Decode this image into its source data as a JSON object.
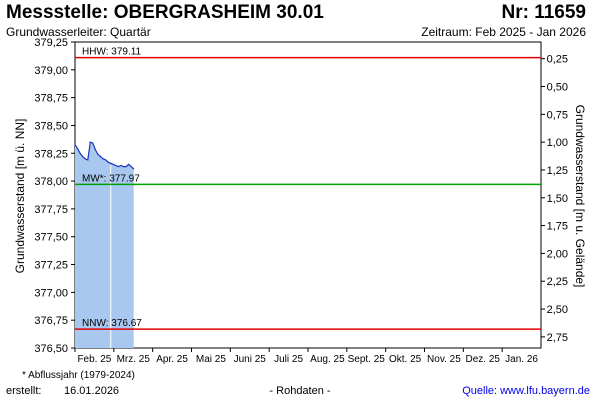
{
  "header": {
    "title": "Messstelle: OBERGRASHEIM 30.01",
    "number": "Nr: 11659",
    "aquifer": "Grundwasserleiter: Quartär",
    "period": "Zeitraum: Feb 2025 - Jan 2026"
  },
  "footer": {
    "footnote": "* Abflussjahr (1979-2024)",
    "created_label": "erstellt:",
    "created_value": "16.01.2026",
    "raw_data": "- Rohdaten -",
    "source": "Quelle: www.lfu.bayern.de"
  },
  "chart_data": {
    "type": "area",
    "title": "Messstelle: OBERGRASHEIM 30.01",
    "ylabel": "Grundwasserstand [m ü. NN]",
    "y2label": "Grundwasserstand [m u. Gelände]",
    "ylim": [
      376.5,
      379.25
    ],
    "yticks": [
      "379,25",
      "379,00",
      "378,75",
      "378,50",
      "378,25",
      "378,00",
      "377,75",
      "377,50",
      "377,25",
      "377,00",
      "376,75",
      "376,50"
    ],
    "y2lim": [
      0.1,
      2.85
    ],
    "y2ticks": [
      "0,25",
      "0,50",
      "0,75",
      "1,00",
      "1,25",
      "1,50",
      "1,75",
      "2,00",
      "2,25",
      "2,50",
      "2,75"
    ],
    "xticks": [
      "Feb. 25",
      "Mrz. 25",
      "Apr. 25",
      "Mai 25",
      "Juni 25",
      "Juli 25",
      "Aug. 25",
      "Sept. 25",
      "Okt. 25",
      "Nov. 25",
      "Dez. 25",
      "Jan. 26"
    ],
    "grid": false,
    "fill_color": "#a8c8f0",
    "line_color": "#2030c0",
    "reference_lines": [
      {
        "label": "HHW: 379.11",
        "value": 379.11,
        "color": "#e00000"
      },
      {
        "label": "MW*: 377.97",
        "value": 377.97,
        "color": "#00a000"
      },
      {
        "label": "NNW: 376.67",
        "value": 376.67,
        "color": "#e00000"
      }
    ],
    "series": [
      {
        "x": [
          "2025-02-01",
          "2025-02-03",
          "2025-02-05",
          "2025-02-07",
          "2025-02-09",
          "2025-02-11",
          "2025-02-13",
          "2025-02-15",
          "2025-02-17",
          "2025-02-19",
          "2025-02-21",
          "2025-02-23",
          "2025-02-25",
          "2025-02-27",
          "2025-03-01",
          "2025-03-03",
          "2025-03-05",
          "2025-03-07",
          "2025-03-09",
          "2025-03-11",
          "2025-03-13",
          "2025-03-15",
          "2025-03-17",
          "2025-03-19"
        ],
        "values": [
          378.33,
          378.29,
          378.25,
          378.22,
          378.2,
          378.19,
          378.35,
          378.34,
          378.28,
          378.24,
          378.22,
          378.2,
          378.19,
          378.17,
          378.16,
          378.15,
          378.14,
          378.13,
          378.14,
          378.13,
          378.13,
          378.15,
          378.13,
          378.11
        ]
      }
    ]
  }
}
